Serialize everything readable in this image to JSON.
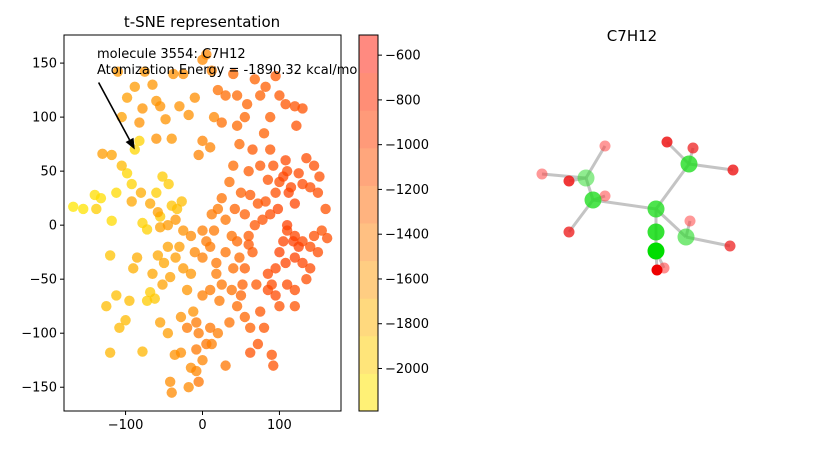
{
  "chart_data": [
    {
      "type": "scatter",
      "title": "t-SNE representation",
      "xlabel": "",
      "ylabel": "",
      "xlim": [
        -180,
        180
      ],
      "ylim": [
        -172,
        176
      ],
      "xticks": [
        "−100",
        "0",
        "100"
      ],
      "xtick_values": [
        -100,
        0,
        100
      ],
      "yticks": [
        "−150",
        "−100",
        "−50",
        "0",
        "50",
        "100",
        "150"
      ],
      "ytick_values": [
        -150,
        -100,
        -50,
        0,
        50,
        100,
        150
      ],
      "annotation": {
        "line1": "molecule 3554: C7H12",
        "line2": "Atomization Energy = -1890.32 kcal/mol",
        "point": [
          -88,
          70
        ],
        "text_anchor": [
          -135,
          132
        ]
      },
      "colorbar": {
        "ticks": [
          "−600",
          "−800",
          "−1000",
          "−1200",
          "−1400",
          "−1600",
          "−1800",
          "−2000"
        ],
        "tick_values": [
          -600,
          -800,
          -1000,
          -1200,
          -1400,
          -1600,
          -1800,
          -2000
        ],
        "vmin": -2190,
        "vmax": -510,
        "colors": [
          "#fff176",
          "#ffe57a",
          "#ffd97e",
          "#ffcd82",
          "#ffc082",
          "#ffb37f",
          "#ffa67c",
          "#ff9a79",
          "#ff8e76",
          "#ff8a80"
        ]
      },
      "points": [
        [
          -168,
          17,
          -2080
        ],
        [
          -155,
          15,
          -2050
        ],
        [
          -140,
          28,
          -1980
        ],
        [
          -132,
          25,
          -1990
        ],
        [
          -118,
          4,
          -1960
        ],
        [
          -112,
          30,
          -1950
        ],
        [
          -98,
          48,
          -1900
        ],
        [
          -92,
          38,
          -1870
        ],
        [
          -88,
          70,
          -1890
        ],
        [
          -82,
          78,
          -1860
        ],
        [
          -78,
          2,
          -1850
        ],
        [
          -72,
          -4,
          -1840
        ],
        [
          -60,
          30,
          -1800
        ],
        [
          -52,
          45,
          -1780
        ],
        [
          -44,
          38,
          -1770
        ],
        [
          -55,
          8,
          -1760
        ],
        [
          -40,
          18,
          -1700
        ],
        [
          -33,
          15,
          -1650
        ],
        [
          -27,
          22,
          -1620
        ],
        [
          -120,
          -28,
          -1700
        ],
        [
          -112,
          -65,
          -1650
        ],
        [
          -100,
          -88,
          -1600
        ],
        [
          -95,
          -70,
          -1620
        ],
        [
          -72,
          -70,
          -1780
        ],
        [
          -68,
          -62,
          -1760
        ],
        [
          -62,
          -68,
          -1740
        ],
        [
          -78,
          -117,
          -1550
        ],
        [
          -120,
          -118,
          -1560
        ],
        [
          -90,
          -40,
          -1500
        ],
        [
          -85,
          -30,
          -1480
        ],
        [
          -58,
          -28,
          -1440
        ],
        [
          -50,
          -35,
          -1420
        ],
        [
          -42,
          -48,
          -1380
        ],
        [
          -35,
          -30,
          -1360
        ],
        [
          -30,
          -20,
          -1350
        ],
        [
          -25,
          -40,
          -1320
        ],
        [
          -20,
          -60,
          -1300
        ],
        [
          -28,
          -85,
          -1280
        ],
        [
          -12,
          -80,
          -1260
        ],
        [
          -36,
          -120,
          -1260
        ],
        [
          -28,
          -118,
          -1240
        ],
        [
          -15,
          -132,
          -1220
        ],
        [
          -42,
          -145,
          -1220
        ],
        [
          -40,
          -155,
          -1200
        ],
        [
          -118,
          65,
          -1400
        ],
        [
          -105,
          100,
          -1380
        ],
        [
          -98,
          118,
          -1360
        ],
        [
          -88,
          128,
          -1340
        ],
        [
          -75,
          142,
          -1300
        ],
        [
          -60,
          115,
          -1300
        ],
        [
          -48,
          98,
          -1280
        ],
        [
          -40,
          80,
          -1300
        ],
        [
          -38,
          140,
          -1250
        ],
        [
          -30,
          110,
          -1270
        ],
        [
          -18,
          102,
          -1250
        ],
        [
          -10,
          118,
          -1240
        ],
        [
          0,
          153,
          -1200
        ],
        [
          5,
          158,
          -1180
        ],
        [
          12,
          143,
          -1160
        ],
        [
          15,
          100,
          -1180
        ],
        [
          10,
          72,
          -1150
        ],
        [
          0,
          78,
          -1150
        ],
        [
          -5,
          65,
          -1150
        ],
        [
          -60,
          80,
          -1250
        ],
        [
          -55,
          110,
          -1270
        ],
        [
          -78,
          108,
          -1280
        ],
        [
          -82,
          95,
          -1270
        ],
        [
          -65,
          130,
          -1300
        ],
        [
          -25,
          140,
          -1230
        ],
        [
          -110,
          142,
          -1320
        ],
        [
          -130,
          66,
          -1350
        ],
        [
          -92,
          22,
          -1440
        ],
        [
          -55,
          -2,
          -1400
        ],
        [
          -45,
          -20,
          -1390
        ],
        [
          -15,
          -45,
          -1300
        ],
        [
          -10,
          -25,
          -1180
        ],
        [
          0,
          -30,
          -1100
        ],
        [
          5,
          -15,
          -1080
        ],
        [
          15,
          -5,
          -1060
        ],
        [
          25,
          -55,
          -1050
        ],
        [
          18,
          -45,
          -1070
        ],
        [
          10,
          -95,
          -1050
        ],
        [
          5,
          -110,
          -1040
        ],
        [
          -5,
          -100,
          -1060
        ],
        [
          35,
          -90,
          -1020
        ],
        [
          30,
          -130,
          -1040
        ],
        [
          -5,
          -145,
          -1050
        ],
        [
          40,
          -40,
          -980
        ],
        [
          48,
          -30,
          -960
        ],
        [
          45,
          -15,
          -940
        ],
        [
          42,
          15,
          -900
        ],
        [
          50,
          30,
          -880
        ],
        [
          55,
          10,
          -860
        ],
        [
          60,
          -10,
          -840
        ],
        [
          65,
          -25,
          -830
        ],
        [
          70,
          -55,
          -820
        ],
        [
          75,
          -80,
          -800
        ],
        [
          80,
          -95,
          -790
        ],
        [
          72,
          -110,
          -780
        ],
        [
          62,
          -118,
          -760
        ],
        [
          90,
          -120,
          -780
        ],
        [
          92,
          -130,
          -770
        ],
        [
          25,
          25,
          -1000
        ],
        [
          35,
          40,
          -980
        ],
        [
          40,
          55,
          -960
        ],
        [
          48,
          75,
          -940
        ],
        [
          45,
          92,
          -950
        ],
        [
          55,
          100,
          -920
        ],
        [
          58,
          112,
          -900
        ],
        [
          45,
          120,
          -930
        ],
        [
          30,
          120,
          -960
        ],
        [
          25,
          95,
          -980
        ],
        [
          20,
          125,
          -1000
        ],
        [
          40,
          140,
          -950
        ],
        [
          68,
          135,
          -900
        ],
        [
          75,
          120,
          -880
        ],
        [
          82,
          128,
          -860
        ],
        [
          95,
          138,
          -840
        ],
        [
          100,
          120,
          -820
        ],
        [
          108,
          112,
          -800
        ],
        [
          120,
          110,
          -780
        ],
        [
          130,
          108,
          -770
        ],
        [
          122,
          92,
          -760
        ],
        [
          88,
          100,
          -860
        ],
        [
          80,
          85,
          -880
        ],
        [
          88,
          70,
          -800
        ],
        [
          92,
          55,
          -780
        ],
        [
          85,
          42,
          -760
        ],
        [
          75,
          55,
          -800
        ],
        [
          65,
          70,
          -820
        ],
        [
          60,
          50,
          -840
        ],
        [
          62,
          28,
          -820
        ],
        [
          72,
          20,
          -800
        ],
        [
          82,
          22,
          -780
        ],
        [
          95,
          30,
          -750
        ],
        [
          100,
          40,
          -740
        ],
        [
          110,
          50,
          -720
        ],
        [
          108,
          60,
          -700
        ],
        [
          115,
          35,
          -690
        ],
        [
          120,
          20,
          -680
        ],
        [
          125,
          48,
          -700
        ],
        [
          130,
          38,
          -710
        ],
        [
          140,
          35,
          -720
        ],
        [
          150,
          30,
          -730
        ],
        [
          145,
          55,
          -740
        ],
        [
          135,
          62,
          -720
        ],
        [
          152,
          45,
          -750
        ],
        [
          160,
          15,
          -760
        ],
        [
          155,
          -5,
          -770
        ],
        [
          145,
          -10,
          -740
        ],
        [
          140,
          -20,
          -720
        ],
        [
          130,
          -15,
          -700
        ],
        [
          120,
          -10,
          -680
        ],
        [
          110,
          -5,
          -670
        ],
        [
          105,
          -15,
          -660
        ],
        [
          100,
          -25,
          -650
        ],
        [
          108,
          -35,
          -660
        ],
        [
          120,
          -30,
          -650
        ],
        [
          130,
          -35,
          -680
        ],
        [
          140,
          -40,
          -700
        ],
        [
          150,
          -25,
          -720
        ],
        [
          162,
          -12,
          -750
        ],
        [
          95,
          -40,
          -690
        ],
        [
          85,
          -45,
          -700
        ],
        [
          90,
          -55,
          -720
        ],
        [
          85,
          -60,
          -700
        ],
        [
          95,
          -65,
          -710
        ],
        [
          110,
          -55,
          -700
        ],
        [
          120,
          -60,
          -720
        ],
        [
          135,
          -50,
          -730
        ],
        [
          120,
          -75,
          -780
        ],
        [
          100,
          -75,
          -760
        ],
        [
          110,
          0,
          -640
        ],
        [
          118,
          -15,
          -620
        ],
        [
          125,
          -20,
          -630
        ],
        [
          112,
          30,
          -660
        ],
        [
          105,
          45,
          -670
        ],
        [
          98,
          15,
          -680
        ],
        [
          88,
          10,
          -720
        ],
        [
          78,
          5,
          -760
        ],
        [
          68,
          0,
          -800
        ],
        [
          60,
          -18,
          -820
        ],
        [
          55,
          -40,
          -860
        ],
        [
          52,
          -55,
          -880
        ],
        [
          50,
          -65,
          -900
        ],
        [
          18,
          -35,
          -1050
        ],
        [
          10,
          -20,
          -1080
        ],
        [
          0,
          -5,
          -1100
        ],
        [
          12,
          10,
          -1080
        ],
        [
          20,
          15,
          -1060
        ],
        [
          30,
          5,
          -1030
        ],
        [
          38,
          -10,
          -1000
        ],
        [
          30,
          -25,
          -1020
        ],
        [
          22,
          -70,
          -1060
        ],
        [
          10,
          -60,
          -1080
        ],
        [
          0,
          -65,
          -1100
        ],
        [
          -8,
          -90,
          -1080
        ],
        [
          -20,
          -95,
          -1060
        ],
        [
          -8,
          -115,
          -1060
        ],
        [
          38,
          -60,
          -1000
        ],
        [
          45,
          -75,
          -960
        ],
        [
          55,
          -85,
          -920
        ],
        [
          62,
          -95,
          -880
        ],
        [
          -15,
          -10,
          -1200
        ],
        [
          -25,
          -5,
          -1260
        ],
        [
          -35,
          5,
          -1300
        ],
        [
          -45,
          0,
          -1330
        ],
        [
          -58,
          12,
          -1380
        ],
        [
          -68,
          20,
          -1420
        ],
        [
          -80,
          30,
          -1480
        ],
        [
          -105,
          55,
          -1600
        ],
        [
          -138,
          15,
          -1800
        ],
        [
          -125,
          -75,
          -1620
        ],
        [
          -108,
          -95,
          -1580
        ],
        [
          -65,
          -45,
          -1420
        ],
        [
          -52,
          -55,
          -1400
        ],
        [
          -55,
          -90,
          -1380
        ],
        [
          -45,
          -100,
          -1360
        ],
        [
          -18,
          -150,
          -1200
        ],
        [
          -8,
          -135,
          -1180
        ],
        [
          0,
          -125,
          -1160
        ],
        [
          12,
          -110,
          -1120
        ],
        [
          20,
          -100,
          -1100
        ]
      ]
    },
    {
      "type": "scatter",
      "title": "C7H12"
    }
  ]
}
